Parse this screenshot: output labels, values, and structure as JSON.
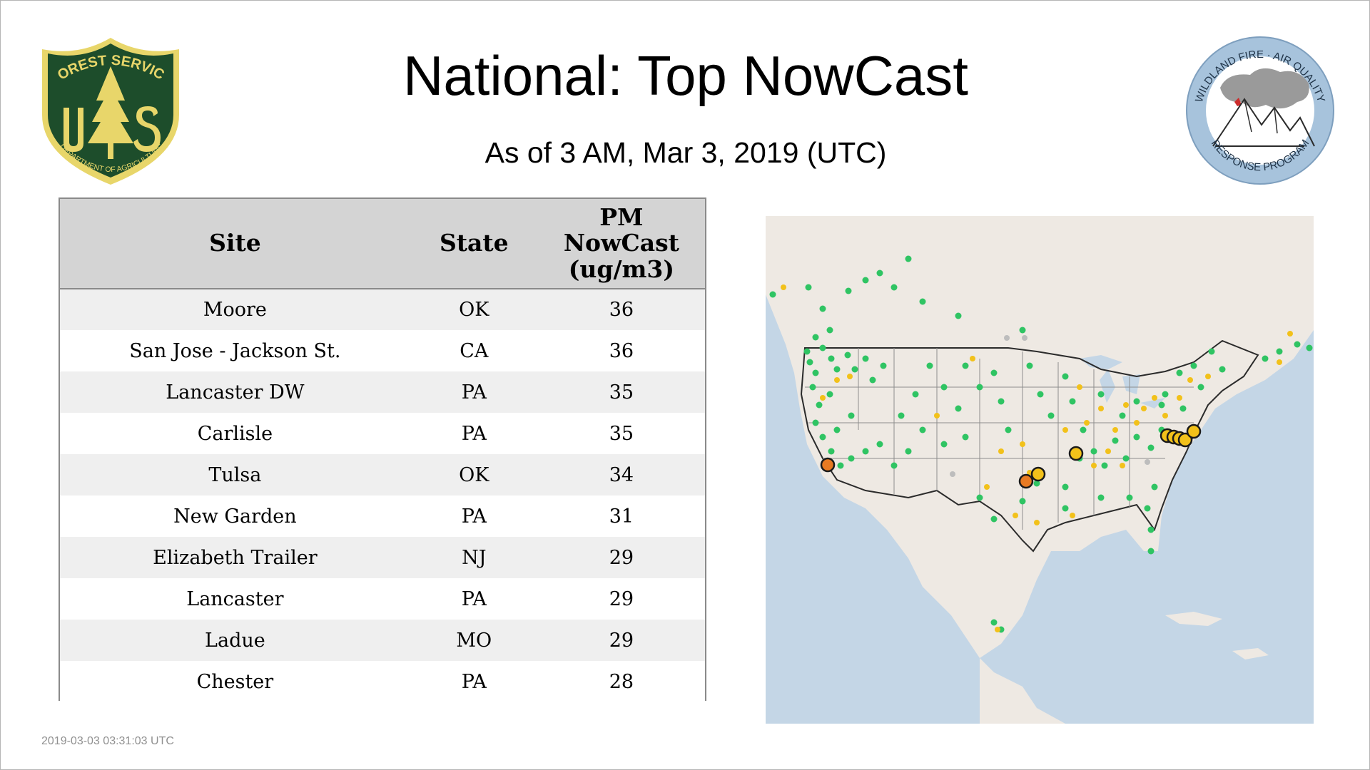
{
  "header": {
    "title": "National: Top NowCast",
    "subtitle": "As of  3 AM, Mar  3, 2019 (UTC)"
  },
  "logos": {
    "forest_service": {
      "icon": "usda-forest-service-shield-icon",
      "text_top": "FOREST SERVICE",
      "text_bottom": "DEPARTMENT OF AGRICULTURE",
      "letters": "US",
      "colors": {
        "green": "#1d4d2b",
        "gold": "#e8d66a"
      }
    },
    "wildland_fire": {
      "icon": "wildland-fire-air-quality-badge-icon",
      "text_top": "WILDLAND FIRE · AIR QUALITY",
      "text_bottom": "RESPONSE PROGRAM",
      "colors": {
        "ring": "#a7c3dc",
        "smoke": "#9a9a9a",
        "flame": "#cc2b2b"
      }
    }
  },
  "table": {
    "headers": {
      "site": "Site",
      "state": "State",
      "value_line1": "PM",
      "value_line2": "NowCast",
      "value_line3": "(ug/m3)"
    },
    "rows": [
      {
        "site": "Moore",
        "state": "OK",
        "value": "36"
      },
      {
        "site": "San Jose - Jackson St.",
        "state": "CA",
        "value": "36"
      },
      {
        "site": "Lancaster DW",
        "state": "PA",
        "value": "35"
      },
      {
        "site": "Carlisle",
        "state": "PA",
        "value": "35"
      },
      {
        "site": "Tulsa",
        "state": "OK",
        "value": "34"
      },
      {
        "site": "New Garden",
        "state": "PA",
        "value": "31"
      },
      {
        "site": "Elizabeth Trailer",
        "state": "NJ",
        "value": "29"
      },
      {
        "site": "Lancaster",
        "state": "PA",
        "value": "29"
      },
      {
        "site": "Ladue",
        "state": "MO",
        "value": "29"
      },
      {
        "site": "Chester",
        "state": "PA",
        "value": "28"
      }
    ]
  },
  "map": {
    "icon": "north-america-monitor-map",
    "colors": {
      "ocean": "#c4d6e6",
      "land": "#eee9e3",
      "good": "#2fc463",
      "moderate": "#f2c11a",
      "usg": "#e87a22",
      "no_data": "#bdbdbd",
      "border": "#2b2b2b"
    }
  },
  "footer": {
    "timestamp": "2019-03-03 03:31:03 UTC"
  }
}
